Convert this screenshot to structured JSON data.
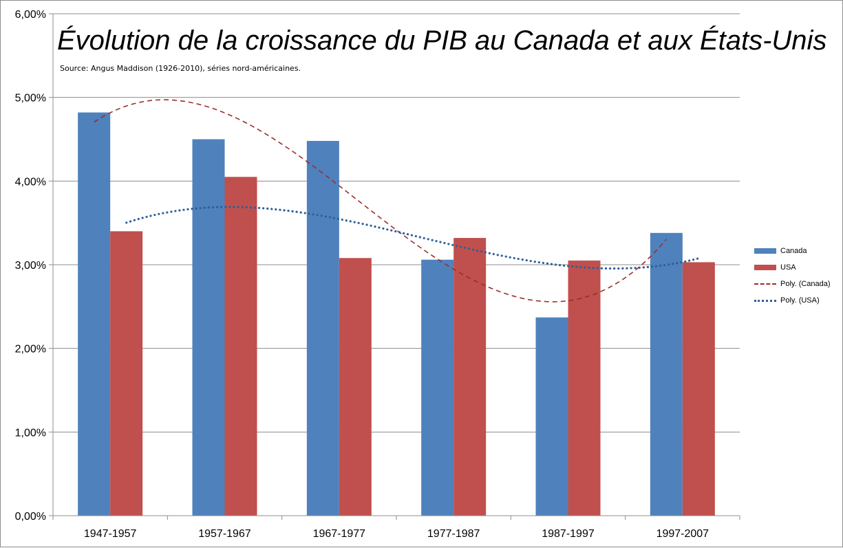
{
  "chart_data": {
    "type": "bar",
    "title": "Évolution de la croissance du PIB au Canada et aux États-Unis",
    "subtitle": "Source: Angus Maddison (1926-2010), séries nord-américaines.",
    "categories": [
      "1947-1957",
      "1957-1967",
      "1967-1977",
      "1977-1987",
      "1987-1997",
      "1997-2007"
    ],
    "series": [
      {
        "name": "Canada",
        "color": "#4f81bd",
        "values": [
          4.82,
          4.5,
          4.48,
          3.06,
          2.37,
          3.38
        ]
      },
      {
        "name": "USA",
        "color": "#c0504d",
        "values": [
          3.4,
          4.05,
          3.08,
          3.32,
          3.05,
          3.03
        ]
      }
    ],
    "trendlines": [
      {
        "name": "Poly. (Canada)",
        "of": "Canada",
        "type": "polynomial",
        "style": "dashed",
        "color": "#9b2d2a"
      },
      {
        "name": "Poly. (USA)",
        "of": "USA",
        "type": "polynomial",
        "style": "dotted",
        "color": "#2e5f99"
      }
    ],
    "yticks": [
      "0,00%",
      "1,00%",
      "2,00%",
      "3,00%",
      "4,00%",
      "5,00%",
      "6,00%"
    ],
    "ylim": [
      0,
      6
    ],
    "grid": true,
    "legend_position": "right"
  }
}
